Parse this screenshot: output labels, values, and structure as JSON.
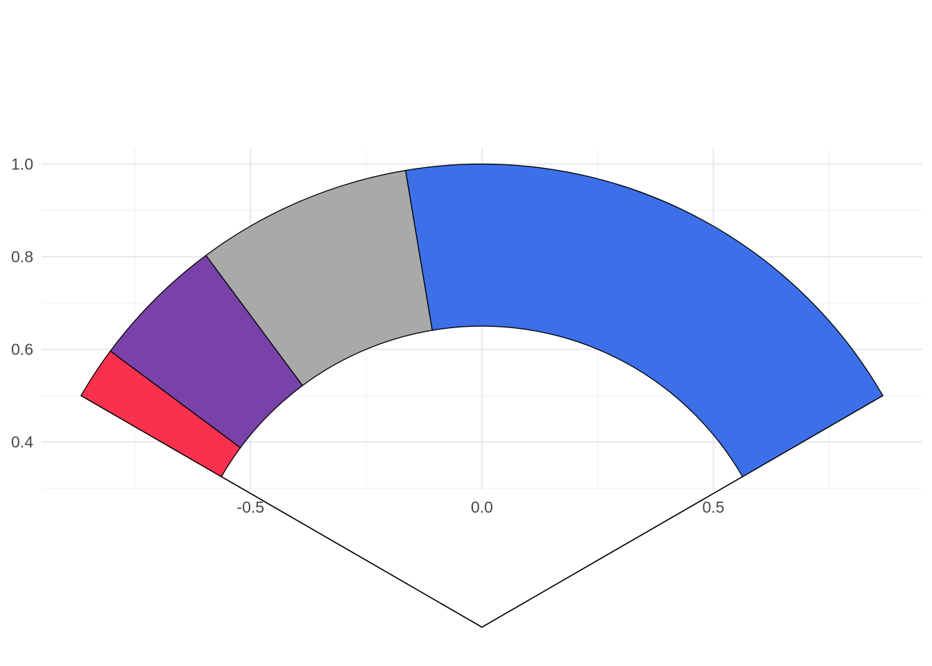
{
  "figure": {
    "background": "#FFFFFF",
    "title": ""
  },
  "chart_data": {
    "type": "pie",
    "subtype": "fan-gauge (annular sector drawn on cartesian axes)",
    "title": "",
    "xlabel": "",
    "ylabel": "",
    "legend": "none",
    "grid": "on",
    "center_data_coords": [
      0,
      0
    ],
    "inner_radius": 0.65,
    "outer_radius": 1.0,
    "sector_start_deg": 150,
    "sector_end_deg": 30,
    "segments": [
      {
        "name": "segment-red",
        "color": "#F9314F",
        "start_deg": 150.0,
        "end_deg": 143.4,
        "fraction": 0.055
      },
      {
        "name": "segment-purple",
        "color": "#7842A9",
        "start_deg": 143.4,
        "end_deg": 126.6,
        "fraction": 0.14
      },
      {
        "name": "segment-gray",
        "color": "#A9A9A9",
        "start_deg": 126.6,
        "end_deg": 99.5,
        "fraction": 0.226
      },
      {
        "name": "segment-blue",
        "color": "#3D6FE8",
        "start_deg": 99.5,
        "end_deg": 30.0,
        "fraction": 0.579
      }
    ],
    "spokes": [
      {
        "angle_deg": 150,
        "from_r": 0,
        "to_r": 1.0
      },
      {
        "angle_deg": 30,
        "from_r": 0,
        "to_r": 1.0
      }
    ],
    "x_axis": {
      "range": [
        -0.951,
        0.951
      ],
      "major_ticks": [
        -0.5,
        0.0,
        0.5
      ],
      "tick_labels": [
        "-0.5",
        "0.0",
        "0.5"
      ],
      "minor_ticks": [
        -0.75,
        -0.25,
        0.25,
        0.75
      ]
    },
    "y_axis": {
      "range": [
        0.297,
        1.034
      ],
      "major_ticks": [
        0.4,
        0.6,
        0.8,
        1.0
      ],
      "tick_labels": [
        "0.4",
        "0.6",
        "0.8",
        "1.0"
      ],
      "minor_ticks": [
        0.3,
        0.5,
        0.7,
        0.9
      ]
    },
    "styles": {
      "grid_major_color": "#E8E8E8",
      "grid_minor_color": "#EFEFEF",
      "tick_label_color": "#474747",
      "segment_stroke_color": "#000000",
      "spoke_color": "#000000"
    }
  }
}
